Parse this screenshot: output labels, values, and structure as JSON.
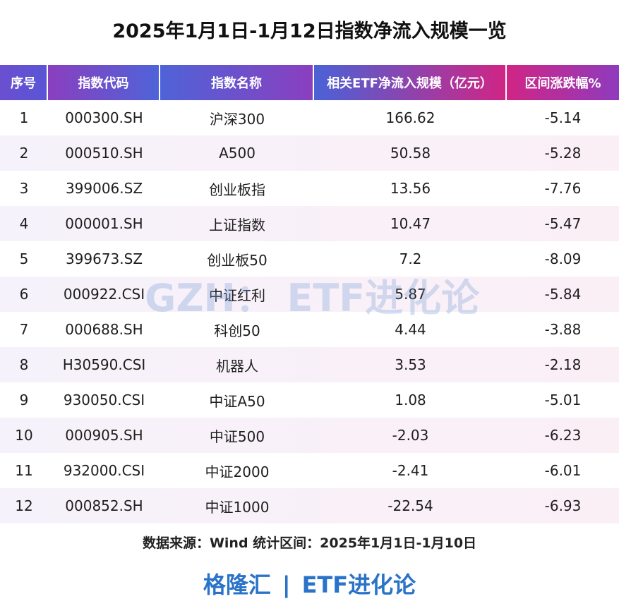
{
  "header": {
    "title": "2025年1月1日-1月12日指数净流入规模一览"
  },
  "table": {
    "columns": [
      "序号",
      "指数代码",
      "指数名称",
      "相关ETF净流入规模（亿元）",
      "区间涨跌幅%"
    ],
    "rows": [
      [
        "1",
        "000300.SH",
        "沪深300",
        "166.62",
        "-5.14"
      ],
      [
        "2",
        "000510.SH",
        "A500",
        "50.58",
        "-5.28"
      ],
      [
        "3",
        "399006.SZ",
        "创业板指",
        "13.56",
        "-7.76"
      ],
      [
        "4",
        "000001.SH",
        "上证指数",
        "10.47",
        "-5.47"
      ],
      [
        "5",
        "399673.SZ",
        "创业板50",
        "7.2",
        "-8.09"
      ],
      [
        "6",
        "000922.CSI",
        "中证红利",
        "5.87",
        "-5.84"
      ],
      [
        "7",
        "000688.SH",
        "科创50",
        "4.44",
        "-3.88"
      ],
      [
        "8",
        "H30590.CSI",
        "机器人",
        "3.53",
        "-2.18"
      ],
      [
        "9",
        "930050.CSI",
        "中证A50",
        "1.08",
        "-5.01"
      ],
      [
        "10",
        "000905.SH",
        "中证500",
        "-2.03",
        "-6.23"
      ],
      [
        "11",
        "932000.CSI",
        "中证2000",
        "-2.41",
        "-6.01"
      ],
      [
        "12",
        "000852.SH",
        "中证1000",
        "-22.54",
        "-6.93"
      ]
    ]
  },
  "watermark": "GZH： ETF进化论",
  "source": "数据来源：Wind 统计区间：2025年1月1日-1月10日",
  "footer": {
    "brand": "格隆汇",
    "separator": "|",
    "account": "ETF进化论"
  }
}
